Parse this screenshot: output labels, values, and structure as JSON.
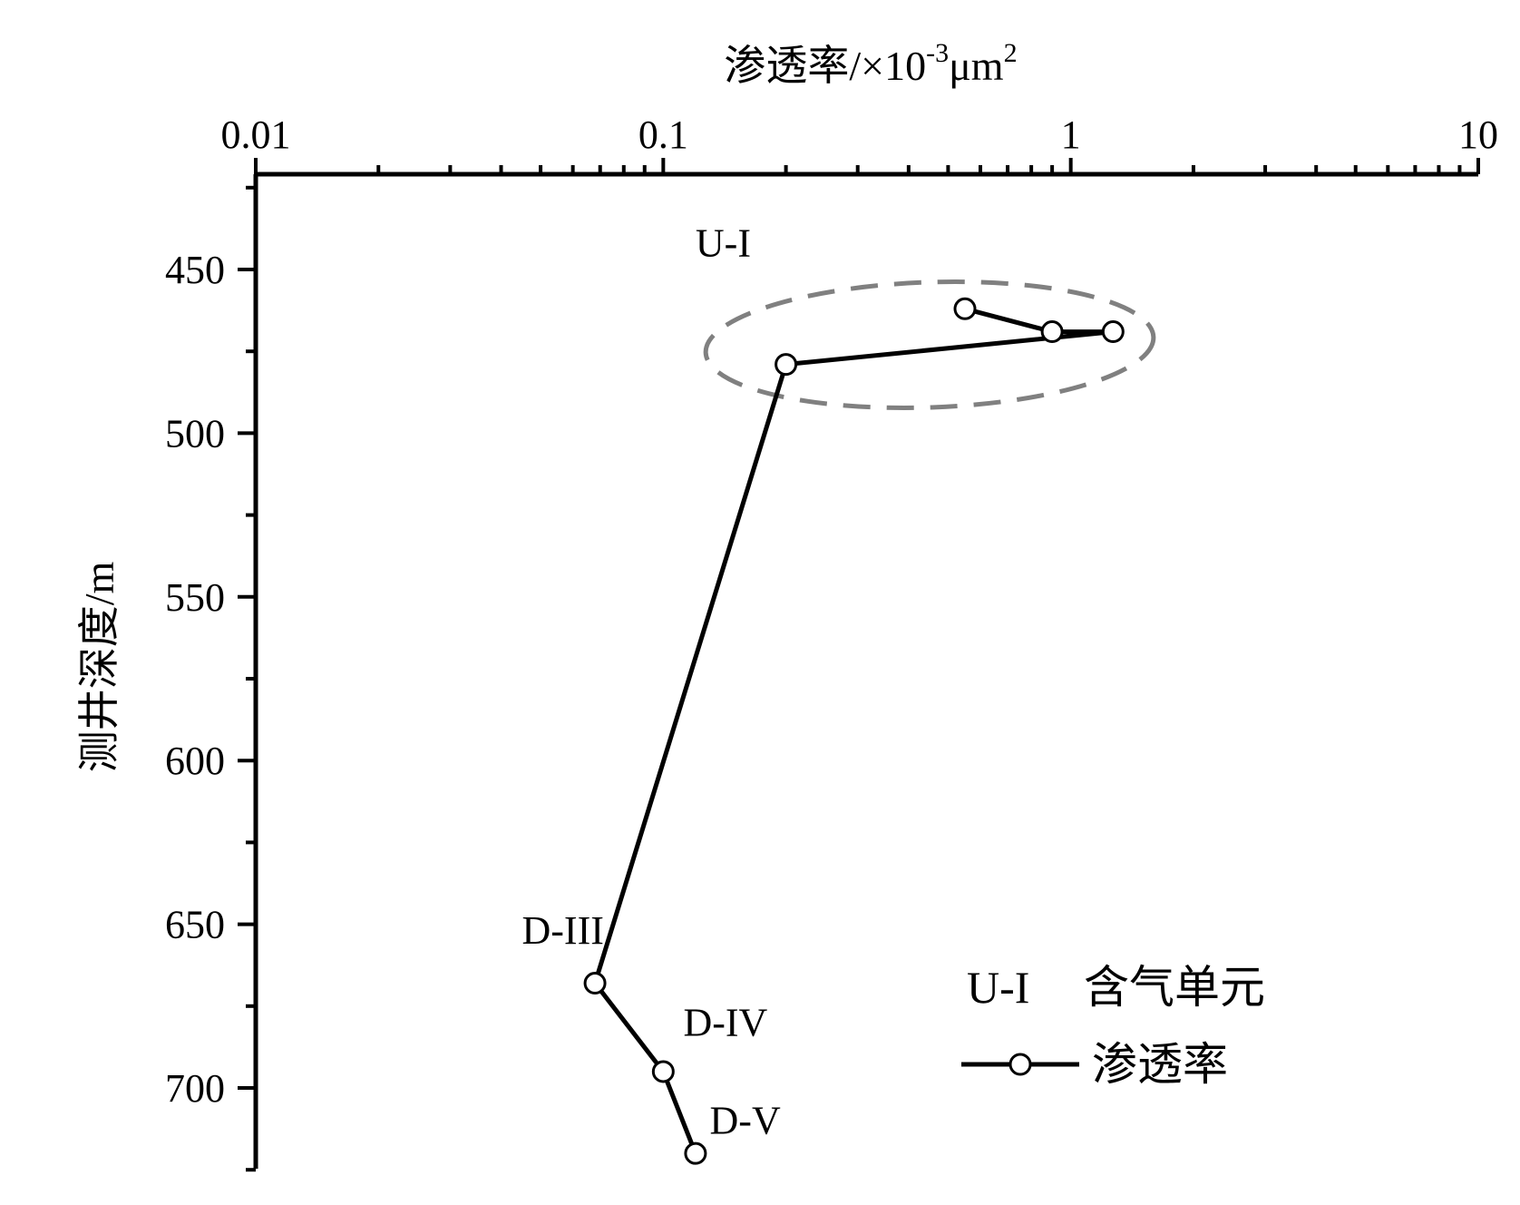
{
  "chart_data": {
    "type": "line",
    "x_axis": {
      "title_main": "渗透率/×10",
      "title_exp": "-3",
      "title_unit": "μm",
      "title_unit_exp": "2",
      "scale": "log",
      "range": [
        0.01,
        10
      ],
      "position": "top",
      "tick_labels": [
        "0.01",
        "0.1",
        "1",
        "10"
      ],
      "tick_values": [
        0.01,
        0.1,
        1,
        10
      ]
    },
    "y_axis": {
      "title": "测井深度/m",
      "range": [
        425,
        725
      ],
      "inverted": true,
      "tick_labels": [
        "450",
        "500",
        "550",
        "600",
        "650",
        "700"
      ],
      "tick_values": [
        450,
        500,
        550,
        600,
        650,
        700
      ]
    },
    "series": [
      {
        "name": "渗透率",
        "color": "#000000",
        "marker": "open-circle",
        "points": [
          {
            "x": 0.55,
            "y": 462
          },
          {
            "x": 0.9,
            "y": 469
          },
          {
            "x": 1.27,
            "y": 469
          },
          {
            "x": 0.2,
            "y": 479
          },
          {
            "x": 0.068,
            "y": 668
          },
          {
            "x": 0.1,
            "y": 695
          },
          {
            "x": 0.12,
            "y": 720
          }
        ]
      }
    ],
    "annotations": [
      {
        "text": "U-I",
        "x": 0.12,
        "y": 446
      },
      {
        "text": "D-III",
        "x": 0.045,
        "y": 656
      },
      {
        "text": "D-IV",
        "x": 0.112,
        "y": 684
      },
      {
        "text": "D-V",
        "x": 0.13,
        "y": 714
      }
    ],
    "highlight_ellipse": {
      "label": "U-I",
      "color": "#808080",
      "style": "dashed"
    },
    "legend": {
      "position": "bottom-right",
      "entries": [
        {
          "key": "U-I",
          "label": "含气单元"
        },
        {
          "key": "line-marker",
          "label": "渗透率"
        }
      ]
    }
  }
}
